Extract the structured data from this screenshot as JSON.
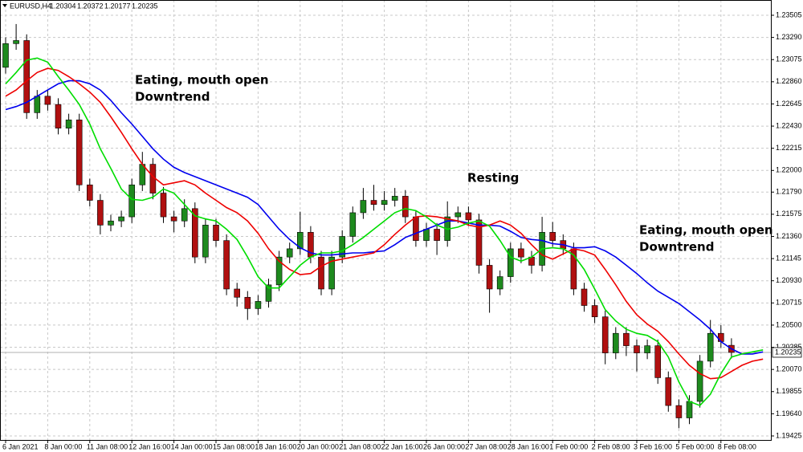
{
  "chart_data": {
    "type": "candlestick",
    "title": "EURUSD,H4",
    "categories": [
      "6 Jan 2021",
      null,
      null,
      null,
      "8 Jan 00:00",
      null,
      null,
      null,
      "11 Jan 08:00",
      null,
      null,
      null,
      "12 Jan 16:00",
      null,
      null,
      null,
      "14 Jan 00:00",
      null,
      null,
      null,
      "15 Jan 08:00",
      null,
      null,
      null,
      "18 Jan 16:00",
      null,
      null,
      null,
      "20 Jan 00:00",
      null,
      null,
      null,
      "21 Jan 08:00",
      null,
      null,
      null,
      "22 Jan 16:00",
      null,
      null,
      null,
      "26 Jan 00:00",
      null,
      null,
      null,
      "27 Jan 08:00",
      null,
      null,
      null,
      "28 Jan 16:00",
      null,
      null,
      null,
      "1 Feb 00:00",
      null,
      null,
      null,
      "2 Feb 08:00",
      null,
      null,
      null,
      "3 Feb 16:00",
      null,
      null,
      null,
      "5 Feb 00:00",
      null,
      null,
      null,
      "8 Feb 08:00",
      null,
      null,
      null,
      null
    ],
    "open": [
      1.23,
      1.2323,
      1.2326,
      1.2256,
      1.2272,
      1.2264,
      1.2241,
      1.2249,
      1.2186,
      1.2171,
      1.2147,
      1.2151,
      1.2155,
      1.2186,
      1.2206,
      1.2178,
      1.2155,
      1.2151,
      1.2163,
      1.2116,
      1.2147,
      1.2132,
      1.2085,
      1.2077,
      1.2066,
      1.2073,
      1.2089,
      1.2116,
      1.2124,
      1.214,
      1.2116,
      1.2085,
      1.2116,
      1.2136,
      1.2159,
      1.2171,
      1.2167,
      1.2171,
      1.2175,
      1.2155,
      1.2132,
      1.2143,
      1.2132,
      1.2155,
      1.2159,
      1.2152,
      1.2108,
      1.2085,
      1.2097,
      1.2124,
      1.2116,
      1.2108,
      1.214,
      1.2132,
      1.2124,
      1.2085,
      1.2069,
      1.2058,
      1.2023,
      1.2042,
      1.203,
      1.2023,
      1.203,
      1.1999,
      1.1972,
      1.196,
      1.1976,
      1.2015,
      1.2042,
      1.20304,
      null,
      null,
      null
    ],
    "high": [
      1.2329,
      1.2342,
      1.2332,
      1.2278,
      1.2278,
      1.227,
      1.2255,
      1.2255,
      1.2192,
      1.2177,
      1.2157,
      1.2161,
      1.2192,
      1.2218,
      1.2212,
      1.2184,
      1.2161,
      1.2172,
      1.2169,
      1.2153,
      1.2153,
      1.2138,
      1.2091,
      1.2083,
      1.2079,
      1.2095,
      1.2122,
      1.213,
      1.216,
      1.2146,
      1.2122,
      1.2122,
      1.2142,
      1.2165,
      1.2183,
      1.2186,
      1.218,
      1.2183,
      1.2181,
      1.2161,
      1.2149,
      1.2149,
      1.217,
      1.2165,
      1.2165,
      1.2158,
      1.2114,
      1.2103,
      1.213,
      1.213,
      1.2122,
      1.2155,
      1.215,
      1.2138,
      1.213,
      1.2091,
      1.2075,
      1.2064,
      1.2048,
      1.2048,
      1.2036,
      1.2036,
      1.2036,
      1.2005,
      1.1978,
      1.1982,
      1.2021,
      1.2055,
      1.205,
      1.20372,
      null,
      null,
      null
    ],
    "low": [
      1.2294,
      1.2317,
      1.225,
      1.225,
      1.2258,
      1.2235,
      1.2235,
      1.218,
      1.2165,
      1.2138,
      1.2141,
      1.2145,
      1.2149,
      1.218,
      1.2172,
      1.2149,
      1.214,
      1.2145,
      1.211,
      1.211,
      1.2126,
      1.2079,
      1.2068,
      1.2055,
      1.206,
      1.2067,
      1.2083,
      1.211,
      1.2118,
      1.211,
      1.2079,
      1.2079,
      1.211,
      1.213,
      1.2153,
      1.2161,
      1.2161,
      1.2165,
      1.2149,
      1.2126,
      1.2126,
      1.2118,
      1.2126,
      1.2149,
      1.2146,
      1.21,
      1.2062,
      1.2079,
      1.2091,
      1.211,
      1.21,
      1.2102,
      1.2126,
      1.2118,
      1.2079,
      1.2063,
      1.2052,
      1.2012,
      1.2017,
      1.202,
      1.2005,
      1.2017,
      1.1993,
      1.1966,
      1.195,
      1.1954,
      1.197,
      1.2009,
      1.2028,
      1.20177,
      null,
      null,
      null
    ],
    "close": [
      1.2323,
      1.2326,
      1.2256,
      1.2272,
      1.2264,
      1.2241,
      1.2249,
      1.2186,
      1.2171,
      1.2147,
      1.2151,
      1.2155,
      1.2186,
      1.2206,
      1.2178,
      1.2155,
      1.2151,
      1.2163,
      1.2116,
      1.2147,
      1.2132,
      1.2085,
      1.2077,
      1.2066,
      1.2073,
      1.2089,
      1.2116,
      1.2124,
      1.214,
      1.2116,
      1.2085,
      1.2116,
      1.2136,
      1.2159,
      1.2171,
      1.2167,
      1.2171,
      1.2175,
      1.2155,
      1.2132,
      1.2143,
      1.2132,
      1.2155,
      1.2159,
      1.2152,
      1.2108,
      1.2085,
      1.2097,
      1.2124,
      1.2116,
      1.2108,
      1.214,
      1.2132,
      1.2124,
      1.2085,
      1.2069,
      1.2058,
      1.2023,
      1.2042,
      1.203,
      1.2023,
      1.203,
      1.1999,
      1.1972,
      1.196,
      1.1976,
      1.2015,
      1.2042,
      1.2034,
      1.20235,
      null,
      null,
      null
    ],
    "up_color": "#1e8a1e",
    "down_color": "#b01010",
    "lines": [
      {
        "color": "#0000ee",
        "values": [
          1.2259,
          1.2262,
          1.2266,
          1.2272,
          1.2278,
          1.2284,
          1.2287,
          1.2287,
          1.2284,
          1.2278,
          1.2268,
          1.2256,
          1.2245,
          1.2233,
          1.2221,
          1.2211,
          1.2203,
          1.2198,
          1.2194,
          1.219,
          1.2186,
          1.2182,
          1.2178,
          1.2174,
          1.2167,
          1.2155,
          1.2143,
          1.2133,
          1.2125,
          1.212,
          1.2118,
          1.2118,
          1.2119,
          1.212,
          1.212,
          1.2121,
          1.2122,
          1.2128,
          1.2135,
          1.2139,
          1.2143,
          1.2147,
          1.2151,
          1.2151,
          1.2149,
          1.2147,
          1.2147,
          1.2146,
          1.2141,
          1.2135,
          1.2133,
          1.2132,
          1.2129,
          1.2128,
          1.2125,
          1.2125,
          1.2126,
          1.2122,
          1.2116,
          1.2108,
          1.21,
          1.2091,
          1.2083,
          1.2077,
          1.2071,
          1.2063,
          1.2055,
          1.2046,
          1.2034,
          1.2027,
          1.2022,
          1.2022,
          1.2024
        ]
      },
      {
        "color": "#ee0000",
        "values": [
          1.2272,
          1.2278,
          1.2287,
          1.2295,
          1.2299,
          1.2297,
          1.2291,
          1.2284,
          1.2276,
          1.2266,
          1.2252,
          1.2237,
          1.2221,
          1.2206,
          1.2194,
          1.2186,
          1.2188,
          1.219,
          1.2186,
          1.2178,
          1.2171,
          1.2164,
          1.2159,
          1.2151,
          1.2139,
          1.2124,
          1.2112,
          1.2104,
          1.2099,
          1.21,
          1.2107,
          1.2112,
          1.2114,
          1.2116,
          1.2118,
          1.212,
          1.2128,
          1.2138,
          1.2147,
          1.2155,
          1.2156,
          1.2155,
          1.2153,
          1.2151,
          1.2147,
          1.2145,
          1.2147,
          1.2151,
          1.2147,
          1.2139,
          1.2128,
          1.2118,
          1.2114,
          1.2119,
          1.2124,
          1.2122,
          1.2118,
          1.2104,
          1.2089,
          1.2073,
          1.206,
          1.2051,
          1.2044,
          1.2034,
          1.2022,
          1.2011,
          1.2003,
          1.1998,
          1.1999,
          1.2005,
          1.2011,
          1.2015,
          1.2017
        ]
      },
      {
        "color": "#00dd00",
        "values": [
          1.2284,
          1.2295,
          1.2307,
          1.2309,
          1.2305,
          1.2291,
          1.2278,
          1.2264,
          1.2245,
          1.2221,
          1.2202,
          1.2182,
          1.2172,
          1.2171,
          1.2174,
          1.2182,
          1.2178,
          1.2167,
          1.2156,
          1.2153,
          1.2151,
          1.2143,
          1.2133,
          1.2116,
          1.2097,
          1.2086,
          1.2086,
          1.2097,
          1.2108,
          1.2116,
          1.212,
          1.212,
          1.2122,
          1.2128,
          1.2135,
          1.2143,
          1.2151,
          1.2159,
          1.2163,
          1.2161,
          1.2155,
          1.2147,
          1.2143,
          1.2145,
          1.2149,
          1.2151,
          1.2146,
          1.2132,
          1.2116,
          1.2112,
          1.2116,
          1.2124,
          1.2125,
          1.2124,
          1.2118,
          1.2104,
          1.2085,
          1.2065,
          1.2054,
          1.2046,
          1.2042,
          1.204,
          1.2034,
          1.2019,
          1.1995,
          1.1976,
          1.1972,
          1.1983,
          1.2003,
          1.2019,
          1.2022,
          1.2024,
          1.2026
        ]
      }
    ],
    "ylim": [
      1.19386,
      1.23653
    ],
    "yticks": [
      1.23505,
      {
        "value": 1.2329,
        "label": "1.23290"
      },
      1.23075,
      {
        "value": 1.2286,
        "label": "1.22860"
      },
      1.22645,
      {
        "value": 1.2243,
        "label": "1.22430"
      },
      1.22215,
      {
        "value": 1.22,
        "label": "1.22000"
      },
      {
        "value": 1.2179,
        "label": "1.21790"
      },
      1.21575,
      {
        "value": 1.2136,
        "label": "1.21360"
      },
      1.21145,
      {
        "value": 1.2093,
        "label": "1.20930"
      },
      1.20715,
      {
        "value": 1.205,
        "label": "1.20500"
      },
      1.20285,
      {
        "value": 1.2007,
        "label": "1.20070"
      },
      1.19855,
      {
        "value": 1.1964,
        "label": "1.19640"
      },
      1.19425
    ],
    "grid": true,
    "annotations": [
      [
        "Eating, mouth open",
        "Downtrend"
      ],
      [
        "Resting"
      ],
      [
        "Eating, mouth open",
        "Downtrend"
      ]
    ]
  }
}
